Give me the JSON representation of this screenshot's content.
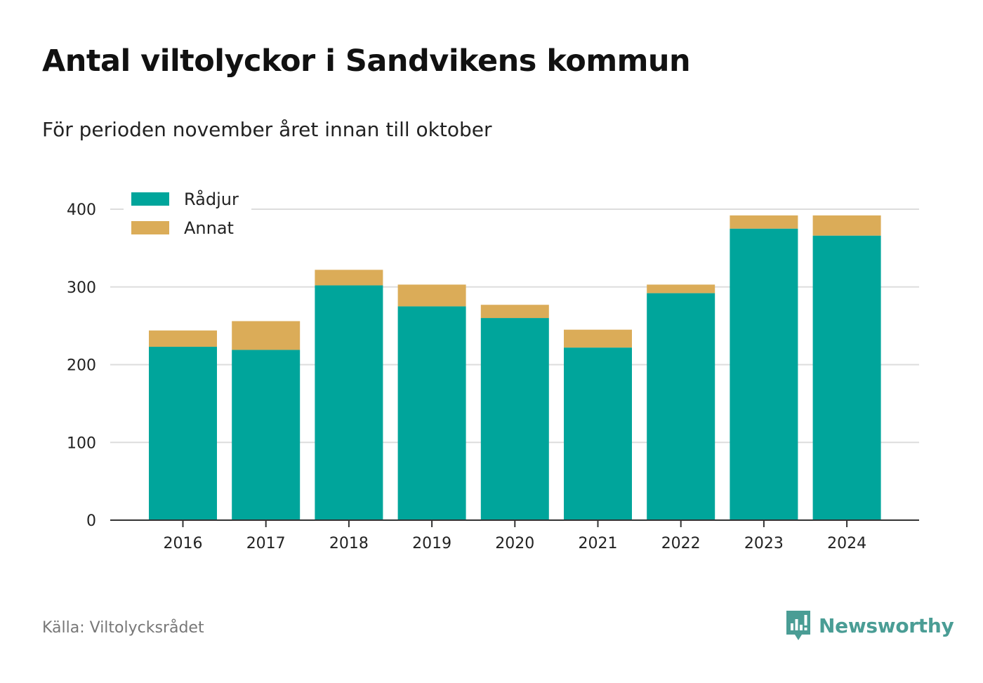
{
  "chart_data": {
    "type": "bar",
    "stacked": true,
    "title": "Antal viltolyckor i Sandvikens kommun",
    "subtitle": "För perioden november året innan till oktober",
    "categories": [
      "2016",
      "2017",
      "2018",
      "2019",
      "2020",
      "2021",
      "2022",
      "2023",
      "2024"
    ],
    "series": [
      {
        "name": "Rådjur",
        "color": "#00a59b",
        "values": [
          223,
          219,
          302,
          275,
          260,
          222,
          292,
          375,
          366
        ]
      },
      {
        "name": "Annat",
        "color": "#dbac58",
        "values": [
          21,
          37,
          20,
          28,
          17,
          23,
          11,
          17,
          26
        ]
      }
    ],
    "ylim": [
      0,
      400
    ],
    "yticks": [
      0,
      100,
      200,
      300,
      400
    ],
    "grid": true,
    "legend_position": "top-left",
    "source": "Källa: Viltolycksrådet"
  },
  "brand": {
    "name": "Newsworthy",
    "color": "#4a9d95"
  }
}
